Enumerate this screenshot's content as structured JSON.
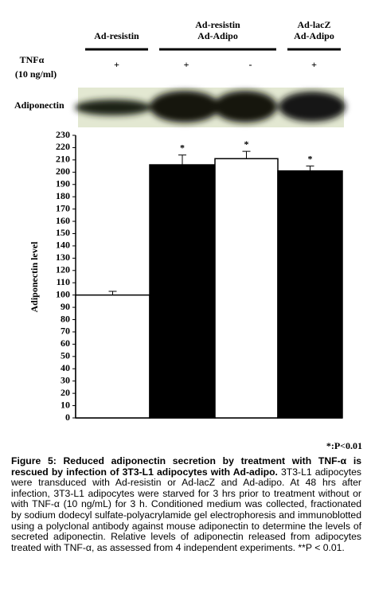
{
  "chart_data": {
    "type": "bar",
    "y_label": "Adiponectin level",
    "categories": [
      null,
      null,
      null,
      null
    ],
    "values": [
      100,
      206,
      211,
      201
    ],
    "errors": [
      3,
      8,
      6,
      4
    ],
    "colors": [
      "#ffffff",
      "#000000",
      "#ffffff",
      "#000000"
    ],
    "ylim": [
      0,
      230
    ],
    "yticks": [
      0,
      10,
      20,
      30,
      40,
      50,
      60,
      70,
      80,
      90,
      100,
      110,
      120,
      130,
      140,
      150,
      160,
      170,
      180,
      190,
      200,
      210,
      220,
      230
    ],
    "annotations": [
      {
        "text": "*",
        "bar": 1
      },
      {
        "text": "*",
        "bar": 2
      },
      {
        "text": "*",
        "bar": 3
      }
    ],
    "note": "*:P<0.01"
  },
  "blot": {
    "treatment_label": "TNFα",
    "treatment_unit": "(10 ng/ml)",
    "band_label": "Adiponectin",
    "groups": [
      {
        "lines": [
          "Ad-resistin"
        ],
        "treatments": [
          "+"
        ]
      },
      {
        "lines": [
          "Ad-resistin",
          "Ad-Adipo"
        ],
        "treatments": [
          "+",
          "-"
        ]
      },
      {
        "lines": [
          "Ad-lacZ",
          "Ad-Adipo"
        ],
        "treatments": [
          "+"
        ]
      }
    ]
  },
  "caption": {
    "title": "Figure 5: Reduced adiponectin secretion by treatment with TNF-α is rescued by infection of 3T3-L1 adipocytes with Ad-adipo.",
    "body": "3T3-L1 adipocytes were transduced with Ad-resistin or Ad-lacZ and Ad-adipo. At 48 hrs after infection, 3T3-L1 adipocytes were starved for 3 hrs prior to treatment without or with TNF-α (10 ng/mL) for 3 h. Conditioned medium was collected, fractionated by sodium dodecyl sulfate-polyacrylamide gel electrophoresis and immunoblotted using a polyclonal antibody against mouse adiponectin to determine the levels of secreted adiponectin. Relative levels of adiponectin released from adipocytes treated with TNF-α, as assessed from 4 independent experiments. **P < 0.01."
  }
}
